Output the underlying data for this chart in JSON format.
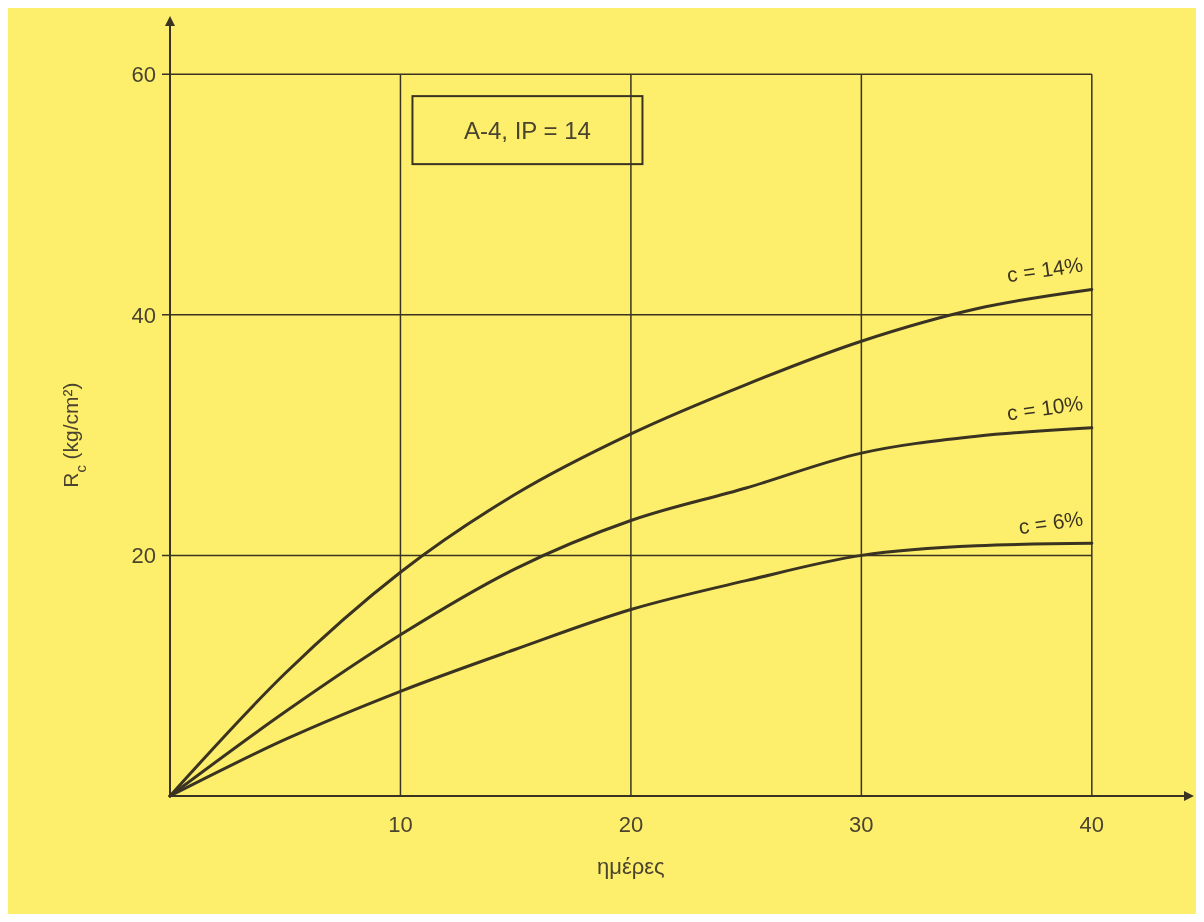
{
  "chart_data": {
    "type": "line",
    "xlabel": "ημέρες",
    "ylabel": "R$_{c}$ (kg/cm²)",
    "annotations": [
      "A-4, IP = 14"
    ],
    "x": [
      0,
      5,
      10,
      15,
      20,
      25,
      30,
      35,
      40
    ],
    "series": [
      {
        "name": "c = 14%",
        "color": "#3a3322",
        "values": [
          0,
          10.2,
          18.6,
          25.1,
          30.1,
          34.2,
          37.8,
          40.5,
          42.1
        ]
      },
      {
        "name": "c = 10%",
        "color": "#3a3322",
        "values": [
          0,
          7.0,
          13.4,
          18.9,
          22.9,
          25.6,
          28.5,
          29.9,
          30.6
        ]
      },
      {
        "name": "c = 6%",
        "color": "#3a3322",
        "values": [
          0,
          4.7,
          8.7,
          12.2,
          15.5,
          17.9,
          20.0,
          20.8,
          21.0
        ]
      }
    ],
    "xlim": [
      0,
      44
    ],
    "ylim": [
      0,
      64
    ],
    "xticks": [
      10,
      20,
      30,
      40
    ],
    "yticks": [
      20,
      40,
      60
    ],
    "grid": true,
    "marker": "none",
    "line_style": "solid"
  }
}
